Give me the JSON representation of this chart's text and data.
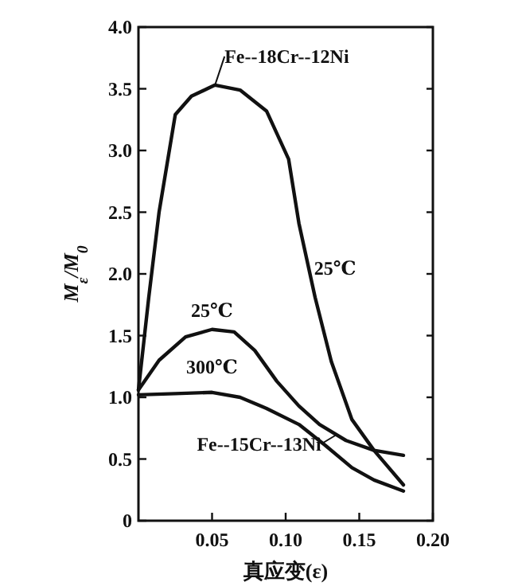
{
  "chart_data": {
    "type": "line",
    "xlabel": "真应变(ε)",
    "ylabel": "M$_{ε}$/M$_{0}$",
    "xlim": [
      0,
      0.2
    ],
    "ylim": [
      0,
      4
    ],
    "xticks": [
      {
        "value": 0.05,
        "label": "0.05"
      },
      {
        "value": 0.1,
        "label": "0.10"
      },
      {
        "value": 0.15,
        "label": "0.15"
      },
      {
        "value": 0.2,
        "label": "0.20"
      }
    ],
    "yticks": [
      0,
      {
        "value": 0.5,
        "label": "0.5"
      },
      {
        "value": 1,
        "label": "1.0"
      },
      {
        "value": 1.5,
        "label": "1.5"
      },
      {
        "value": 2,
        "label": "2.0"
      },
      {
        "value": 2.5,
        "label": "2.5"
      },
      {
        "value": 3,
        "label": "3.0"
      },
      {
        "value": 3.5,
        "label": "3.5"
      },
      {
        "value": 4,
        "label": "4.0"
      }
    ],
    "grid": false,
    "line_style": "solid",
    "series": [
      {
        "color": "#111111",
        "x": [
          0,
          0.007,
          0.014,
          0.025,
          0.036,
          0.052,
          0.069,
          0.087,
          0.102,
          0.109,
          0.12,
          0.131,
          0.145,
          0.16,
          0.18
        ],
        "values": [
          1.06,
          1.81,
          2.5,
          3.29,
          3.44,
          3.53,
          3.49,
          3.32,
          2.93,
          2.41,
          1.81,
          1.29,
          0.82,
          0.57,
          0.29
        ]
      },
      {
        "color": "#111111",
        "x": [
          0,
          0.014,
          0.032,
          0.05,
          0.065,
          0.079,
          0.094,
          0.109,
          0.123,
          0.141,
          0.16,
          0.18
        ],
        "values": [
          1.06,
          1.3,
          1.49,
          1.55,
          1.53,
          1.38,
          1.13,
          0.93,
          0.78,
          0.65,
          0.57,
          0.53
        ]
      },
      {
        "color": "#111111",
        "x": [
          0,
          0.025,
          0.05,
          0.069,
          0.087,
          0.109,
          0.127,
          0.145,
          0.16,
          0.18
        ],
        "values": [
          1.02,
          1.03,
          1.04,
          1.0,
          0.91,
          0.78,
          0.61,
          0.43,
          0.33,
          0.24
        ]
      }
    ],
    "annotations": [
      {
        "text": "Fe--18Cr--12Ni",
        "x": 0.052,
        "y": 3.53
      },
      {
        "text": "25℃",
        "x": 0.115,
        "y": 2.1
      },
      {
        "text": "25℃",
        "x": 0.05,
        "y": 1.55
      },
      {
        "text": "300℃",
        "x": 0.05,
        "y": 1.04
      },
      {
        "text": "Fe--15Cr--13Ni",
        "x": 0.135,
        "y": 0.7
      }
    ]
  }
}
